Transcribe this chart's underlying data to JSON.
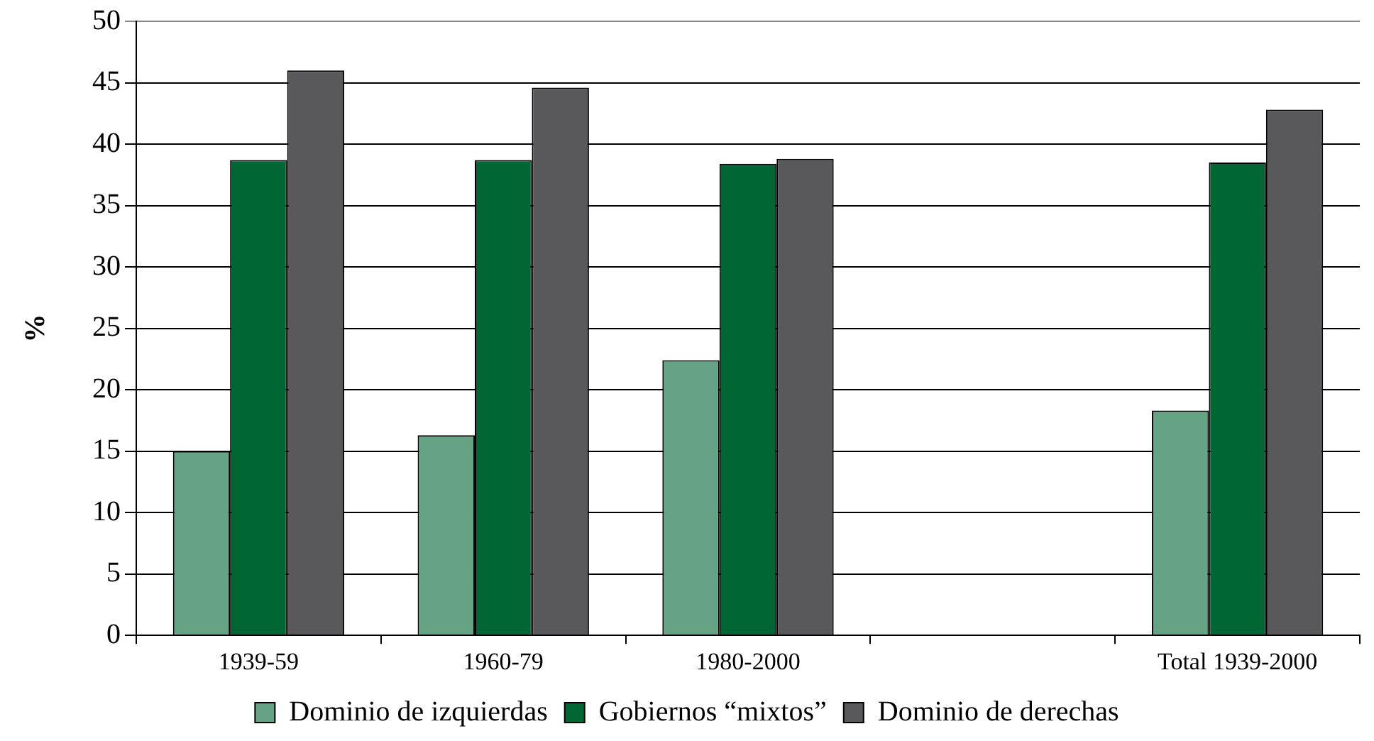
{
  "chart_data": {
    "type": "bar",
    "ylabel": "%",
    "categories": [
      "1939-59",
      "1960-79",
      "1980-2000",
      null,
      "Total 1939-2000"
    ],
    "series": [
      {
        "name": "Dominio de izquierdas",
        "color": "#66a385",
        "values": [
          15.0,
          16.3,
          22.4,
          null,
          18.3
        ]
      },
      {
        "name": "Gobiernos “mixtos”",
        "color": "#006633",
        "values": [
          38.7,
          38.7,
          38.4,
          null,
          38.5
        ]
      },
      {
        "name": "Dominio de derechas",
        "color": "#59595b",
        "values": [
          46.0,
          44.6,
          38.8,
          null,
          42.8
        ]
      }
    ],
    "ylim": [
      0,
      50
    ],
    "yticks": [
      0,
      5,
      10,
      15,
      20,
      25,
      30,
      35,
      40,
      45,
      50
    ],
    "grid": "y",
    "legend": "bottom"
  }
}
